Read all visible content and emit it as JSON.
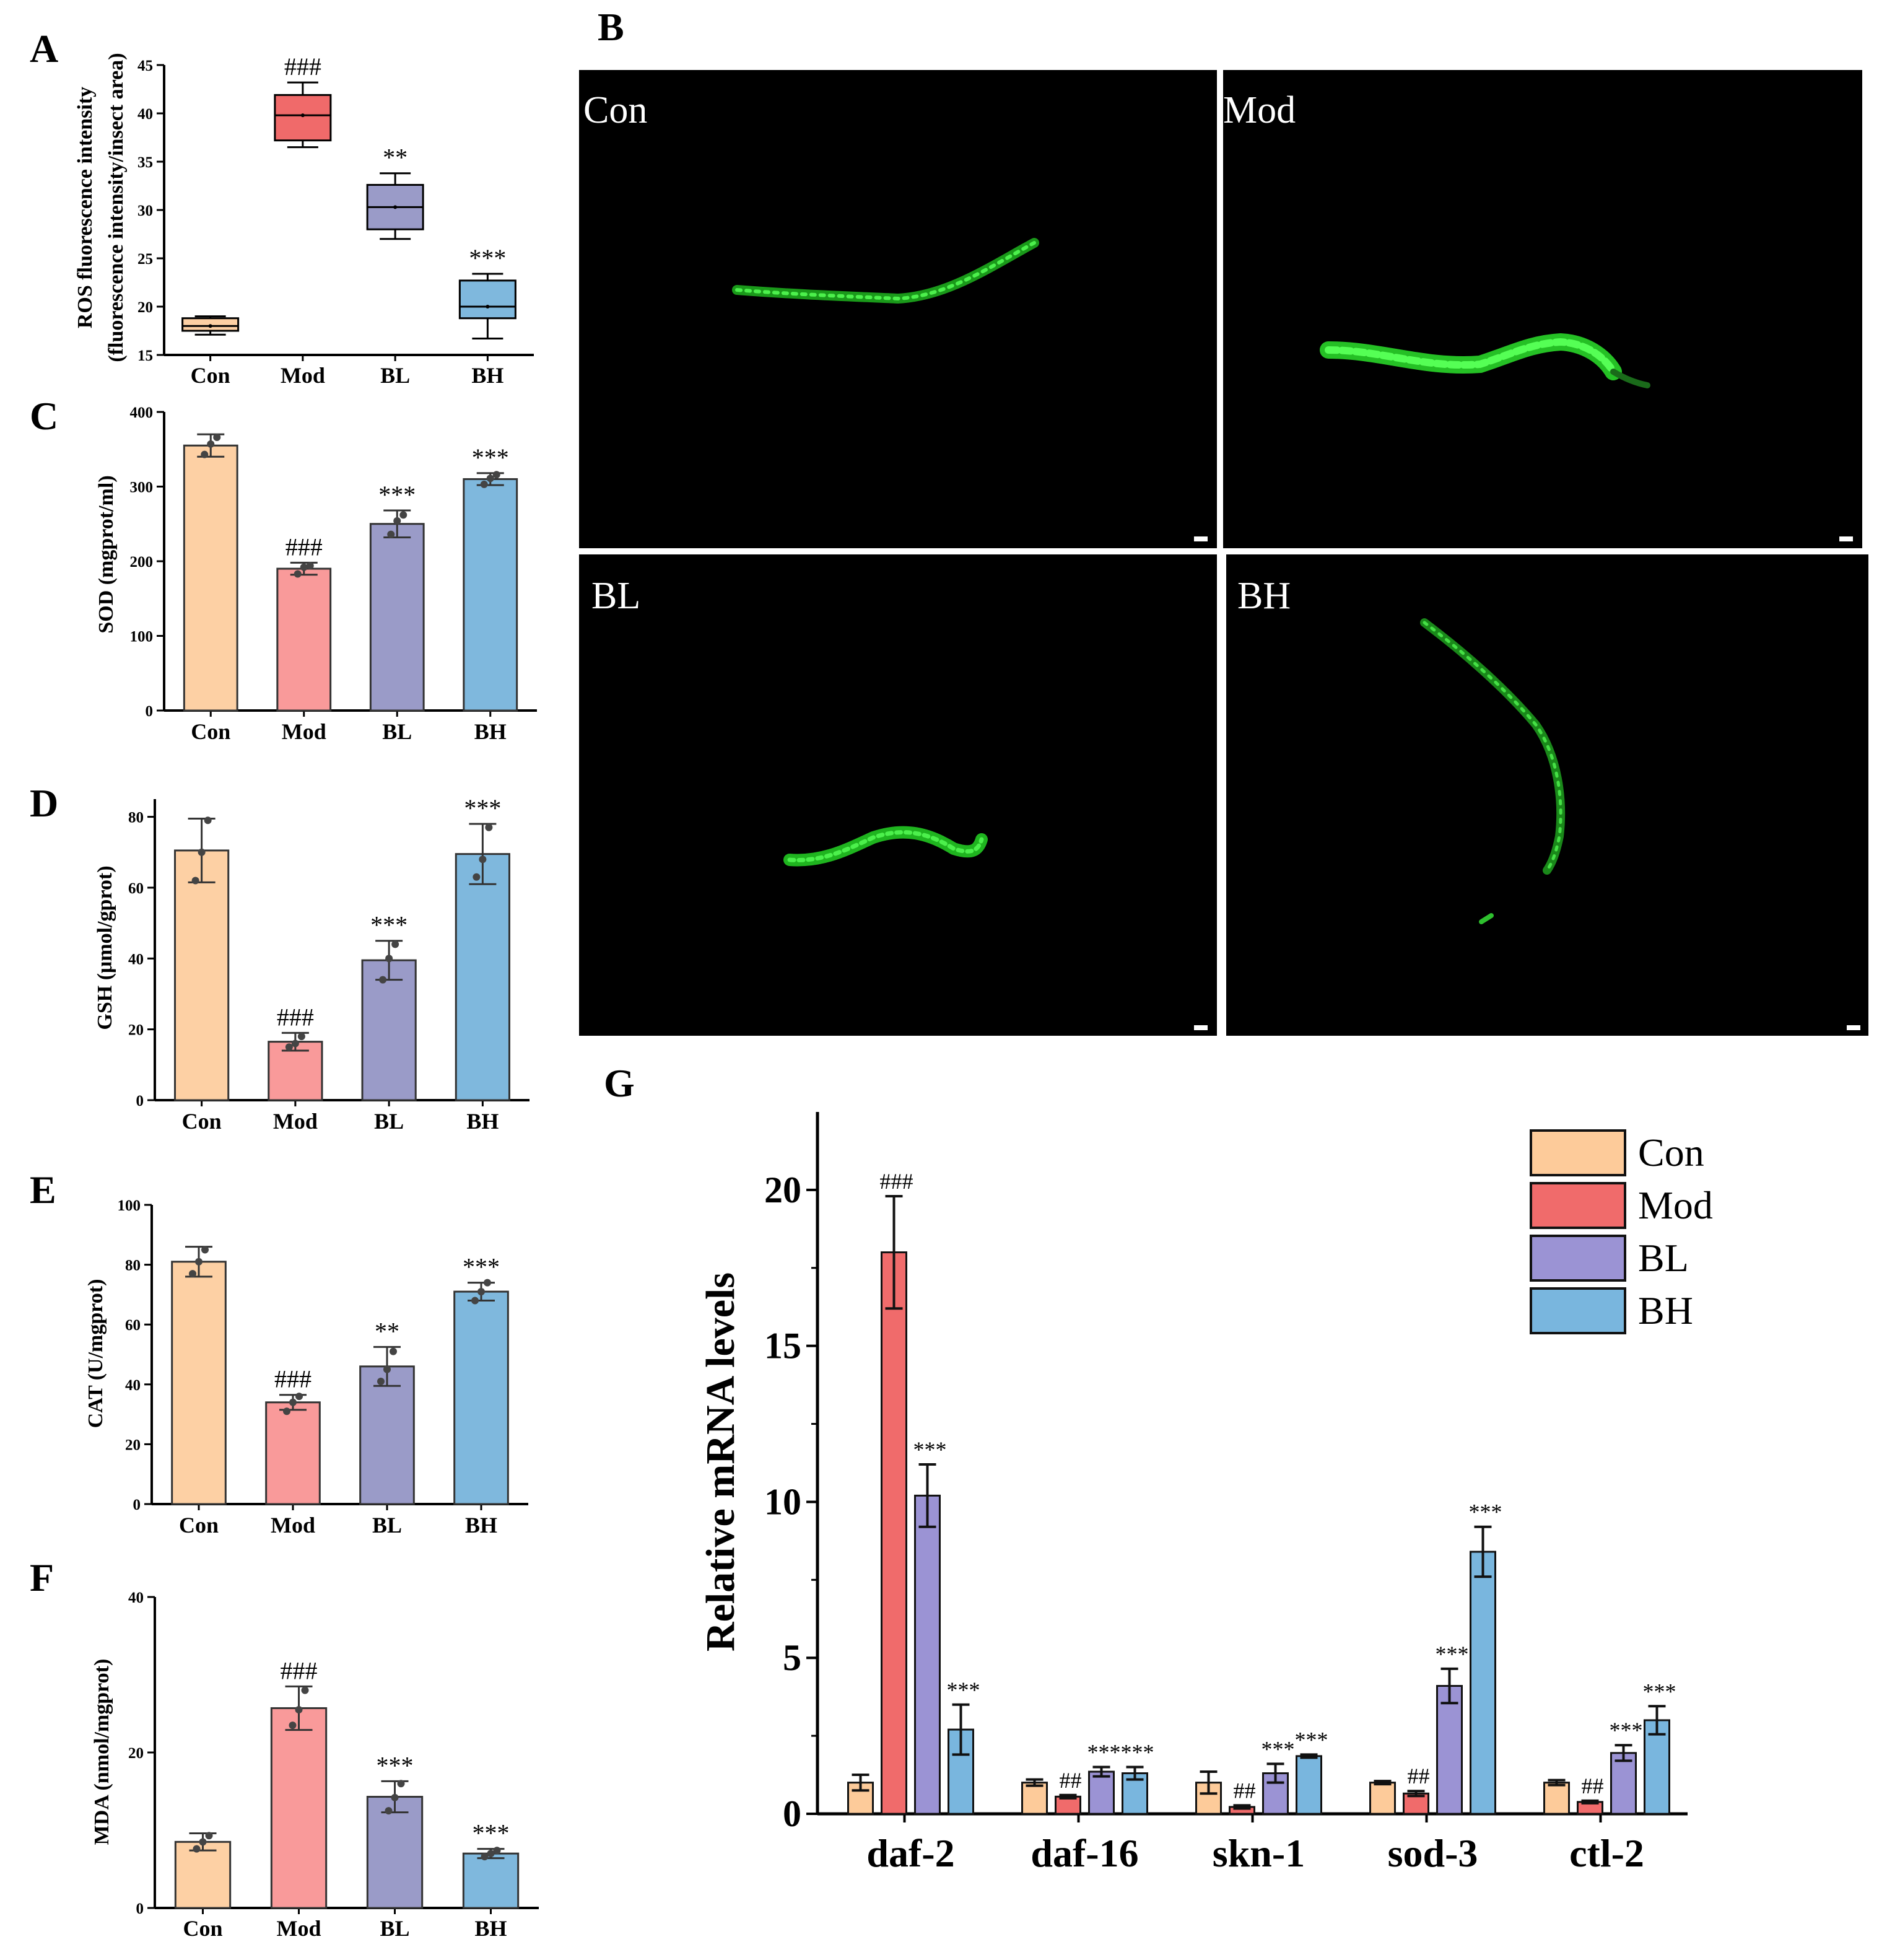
{
  "colors": {
    "Con": "#fdd0a4",
    "Mod": "#f99a9a",
    "BL": "#9a9bc8",
    "BH": "#7fb8dd",
    "Mod_box": "#f06a6a",
    "G_Con": "#fdcb9a",
    "G_Mod": "#f06b6b",
    "G_BL": "#9b93d4",
    "G_BH": "#79b6de",
    "fluor": "#33e033"
  },
  "panels_images": {
    "letter": "B",
    "labels": [
      "Con",
      "Mod",
      "BL",
      "BH"
    ]
  },
  "chart_data": [
    {
      "id": "A",
      "type": "box",
      "letter": "A",
      "ylabel_line1": "ROS fluorescence intensity",
      "ylabel_line2": "(fluorescence intensity/insect area)",
      "ylim": [
        15,
        45
      ],
      "yticks": [
        15,
        20,
        25,
        30,
        35,
        40,
        45
      ],
      "categories": [
        "Con",
        "Mod",
        "BL",
        "BH"
      ],
      "boxes": [
        {
          "min": 17.1,
          "q1": 17.5,
          "median": 18.0,
          "q3": 18.8,
          "max": 19.0,
          "mean": 18.0,
          "sig": ""
        },
        {
          "min": 36.5,
          "q1": 37.2,
          "median": 39.8,
          "q3": 41.9,
          "max": 43.2,
          "mean": 39.8,
          "sig": "###"
        },
        {
          "min": 27.0,
          "q1": 28.0,
          "median": 30.3,
          "q3": 32.6,
          "max": 33.8,
          "mean": 30.3,
          "sig": "**"
        },
        {
          "min": 16.7,
          "q1": 18.8,
          "median": 20.0,
          "q3": 22.7,
          "max": 23.4,
          "mean": 20.0,
          "sig": "***"
        }
      ]
    },
    {
      "id": "C",
      "type": "bar",
      "letter": "C",
      "ylabel": "SOD (mgprot/ml)",
      "ylim": [
        0,
        400
      ],
      "yticks": [
        0,
        100,
        200,
        300,
        400
      ],
      "categories": [
        "Con",
        "Mod",
        "BL",
        "BH"
      ],
      "values": [
        355,
        190,
        250,
        310
      ],
      "errors": [
        15,
        8,
        18,
        8
      ],
      "points": [
        [
          343,
          357,
          366
        ],
        [
          183,
          192,
          194
        ],
        [
          236,
          254,
          262
        ],
        [
          303,
          311,
          316
        ]
      ],
      "sig": [
        "",
        "###",
        "***",
        "***"
      ]
    },
    {
      "id": "D",
      "type": "bar",
      "letter": "D",
      "ylabel": "GSH (μmol/gprot)",
      "ylim": [
        0,
        85
      ],
      "yticks": [
        0,
        20,
        40,
        60,
        80
      ],
      "categories": [
        "Con",
        "Mod",
        "BL",
        "BH"
      ],
      "values": [
        70.5,
        16.5,
        39.5,
        69.5
      ],
      "errors": [
        9,
        2.5,
        5.5,
        8.5
      ],
      "points": [
        [
          62,
          70,
          79
        ],
        [
          15,
          16,
          18
        ],
        [
          34,
          40,
          44
        ],
        [
          63,
          68,
          77
        ]
      ],
      "sig": [
        "",
        "###",
        "***",
        "***"
      ]
    },
    {
      "id": "E",
      "type": "bar",
      "letter": "E",
      "ylabel": "CAT (U/mgprot)",
      "ylim": [
        0,
        100
      ],
      "yticks": [
        0,
        20,
        40,
        60,
        80,
        100
      ],
      "categories": [
        "Con",
        "Mod",
        "BL",
        "BH"
      ],
      "values": [
        81,
        34,
        46,
        71
      ],
      "errors": [
        5,
        2.5,
        6.5,
        3
      ],
      "points": [
        [
          77,
          81,
          85
        ],
        [
          31,
          34,
          36
        ],
        [
          41,
          45,
          51
        ],
        [
          68,
          71,
          74
        ]
      ],
      "sig": [
        "",
        "###",
        "**",
        "***"
      ]
    },
    {
      "id": "F",
      "type": "bar",
      "letter": "F",
      "ylabel": "MDA (nmol/mgprot)",
      "ylim": [
        0,
        40
      ],
      "yticks": [
        0,
        20,
        40
      ],
      "categories": [
        "Con",
        "Mod",
        "BL",
        "BH"
      ],
      "values": [
        8.5,
        25.7,
        14.3,
        7
      ],
      "errors": [
        1.1,
        2.8,
        2,
        0.6
      ],
      "points": [
        [
          7.6,
          8.5,
          9.3
        ],
        [
          23.5,
          25.5,
          28.0
        ],
        [
          12.5,
          14.2,
          16.0
        ],
        [
          6.6,
          7.0,
          7.4
        ]
      ],
      "sig": [
        "",
        "###",
        "***",
        "***"
      ]
    },
    {
      "id": "G",
      "type": "bar",
      "letter": "G",
      "ylabel": "Relative mRNA levels",
      "ylim": [
        0,
        22.5
      ],
      "yticks": [
        0,
        5,
        10,
        15,
        20
      ],
      "categories": [
        "daf-2",
        "daf-16",
        "skn-1",
        "sod-3",
        "ctl-2"
      ],
      "legend": [
        "Con",
        "Mod",
        "BL",
        "BH"
      ],
      "legend_position": "top-right",
      "series": [
        {
          "name": "Con",
          "values": [
            1.0,
            1.0,
            1.0,
            1.0,
            1.0
          ],
          "errors": [
            0.25,
            0.1,
            0.35,
            0.05,
            0.08
          ],
          "sig": [
            "",
            "",
            "",
            "",
            ""
          ]
        },
        {
          "name": "Mod",
          "values": [
            18.0,
            0.55,
            0.22,
            0.65,
            0.38
          ],
          "errors": [
            1.8,
            0.05,
            0.05,
            0.08,
            0.04
          ],
          "sig": [
            "###",
            "##",
            "##",
            "##",
            "##"
          ]
        },
        {
          "name": "BL",
          "values": [
            10.2,
            1.35,
            1.3,
            4.1,
            1.95
          ],
          "errors": [
            1.0,
            0.15,
            0.3,
            0.55,
            0.25
          ],
          "sig": [
            "***",
            "***",
            "***",
            "***",
            "***"
          ]
        },
        {
          "name": "BH",
          "values": [
            2.7,
            1.3,
            1.85,
            8.4,
            3.0
          ],
          "errors": [
            0.8,
            0.2,
            0.05,
            0.8,
            0.45
          ],
          "sig": [
            "***",
            "***",
            "***",
            "***",
            "***"
          ]
        }
      ]
    }
  ]
}
